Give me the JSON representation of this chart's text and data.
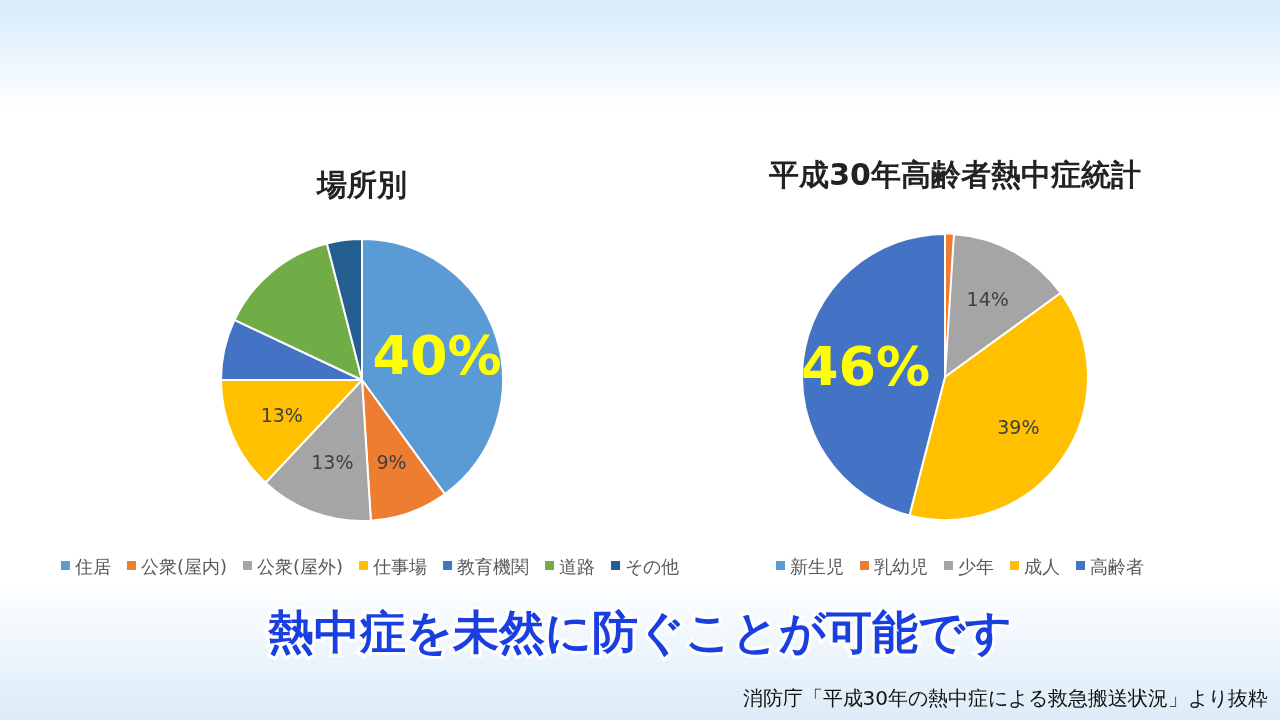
{
  "chart_data": [
    {
      "type": "pie",
      "title": "場所別",
      "categories": [
        "住居",
        "公衆(屋内)",
        "公衆(屋外)",
        "仕事場",
        "教育機関",
        "道路",
        "その他"
      ],
      "values": [
        40,
        9,
        13,
        13,
        7,
        14,
        4
      ],
      "colors": [
        "#5b9bd5",
        "#ed7d31",
        "#a5a5a5",
        "#ffc000",
        "#4472c4",
        "#70ad47",
        "#255e91"
      ],
      "value_labels": [
        "40%",
        "9%",
        "13%",
        "13%",
        null,
        null,
        null
      ],
      "legend": "bottom"
    },
    {
      "type": "pie",
      "title": "平成30年高齢者熱中症統計",
      "categories": [
        "新生児",
        "乳幼児",
        "少年",
        "成人",
        "高齢者"
      ],
      "values": [
        0,
        1,
        14,
        39,
        46
      ],
      "colors": [
        "#5b9bd5",
        "#ed7d31",
        "#a5a5a5",
        "#ffc000",
        "#4472c4"
      ],
      "value_labels": [
        null,
        null,
        "14%",
        "39%",
        "46%"
      ],
      "legend": "bottom",
      "annotations": [
        "熱中症を未然に防ぐことが可能です",
        "消防庁「平成30年の熱中症による救急搬送状況」より抜粋"
      ]
    }
  ]
}
